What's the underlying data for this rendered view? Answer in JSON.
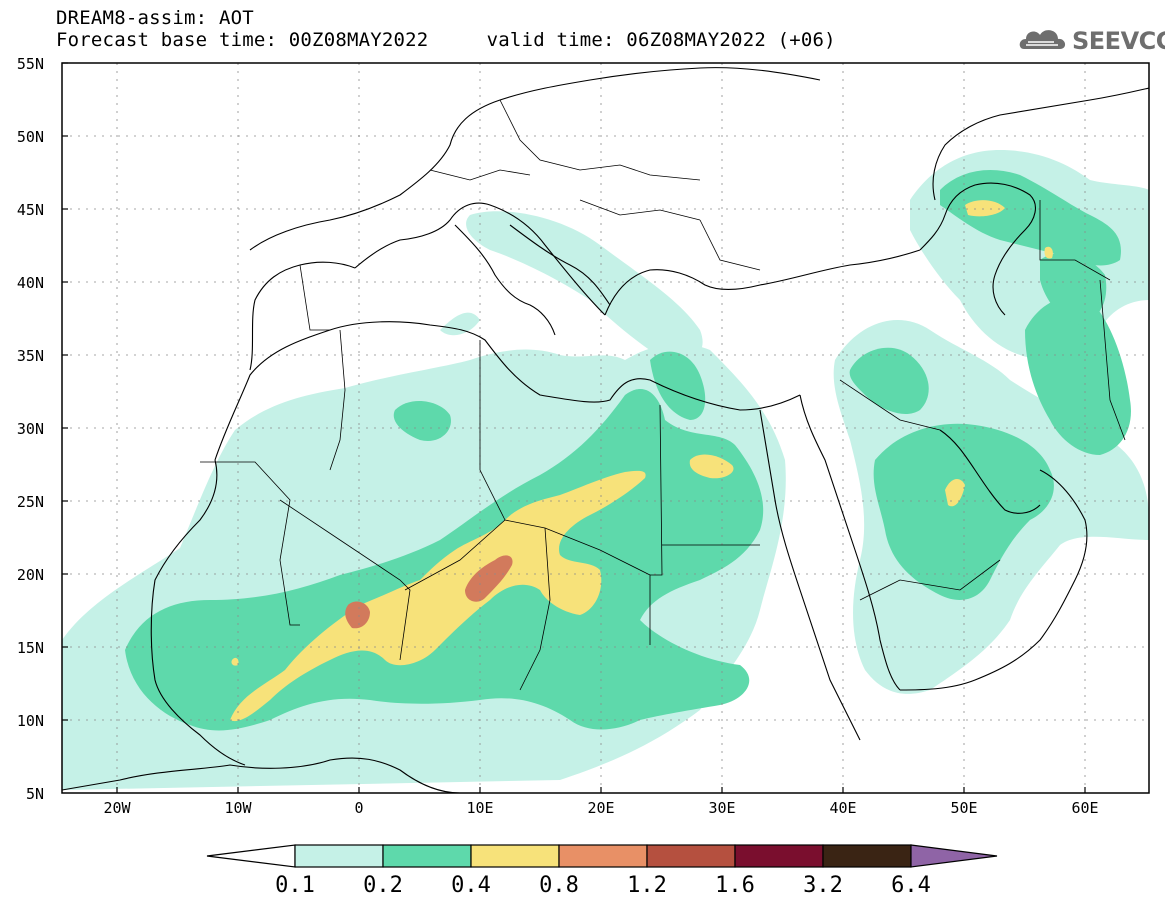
{
  "header": {
    "title": "DREAM8-assim: AOT",
    "subtitle": "Forecast base time: 00Z08MAY2022     valid time: 06Z08MAY2022 (+06)"
  },
  "logo": {
    "text": "SEEVCCC",
    "icon": "cloud-icon"
  },
  "map": {
    "type": "filled-contour-map",
    "variable": "AOT",
    "lon_range": [
      -25,
      65
    ],
    "lat_range": [
      5,
      55
    ],
    "grid": true,
    "lat_ticks": [
      "55N",
      "50N",
      "45N",
      "40N",
      "35N",
      "30N",
      "25N",
      "20N",
      "15N",
      "10N",
      "5N"
    ],
    "lon_ticks": [
      "20W",
      "10W",
      "0",
      "10E",
      "20E",
      "30E",
      "40E",
      "50E",
      "60E"
    ]
  },
  "colorbar": {
    "levels": [
      "0.1",
      "0.2",
      "0.4",
      "0.8",
      "1.2",
      "1.6",
      "3.2",
      "6.4"
    ],
    "colors": [
      "#ffffff",
      "#c5f1e7",
      "#5ed9ab",
      "#f7e27a",
      "#e89066",
      "#b5503f",
      "#7a0e2e",
      "#3a2414",
      "#8f64a6"
    ]
  },
  "colors": {
    "c1": "#c5f1e7",
    "c2": "#5ed9ab",
    "c3": "#f7e27a",
    "c4": "#e89066",
    "c5": "#d27a5c"
  }
}
